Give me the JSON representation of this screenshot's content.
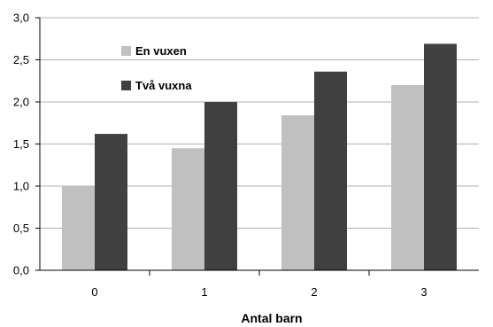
{
  "chart_data": {
    "type": "bar",
    "xlabel": "Antal barn",
    "ylabel": "",
    "title": "",
    "categories": [
      "0",
      "1",
      "2",
      "3"
    ],
    "y_ticks": [
      "0,0",
      "0,5",
      "1,0",
      "1,5",
      "2,0",
      "2,5",
      "3,0"
    ],
    "ylim": [
      0,
      3
    ],
    "grid": true,
    "legend_position": "top-left-inside",
    "series": [
      {
        "name": "En vuxen",
        "color": "#c0c0c0",
        "values": [
          1.0,
          1.45,
          1.84,
          2.2
        ]
      },
      {
        "name": "Två vuxna",
        "color": "#404040",
        "values": [
          1.62,
          2.0,
          2.36,
          2.69
        ]
      }
    ]
  }
}
